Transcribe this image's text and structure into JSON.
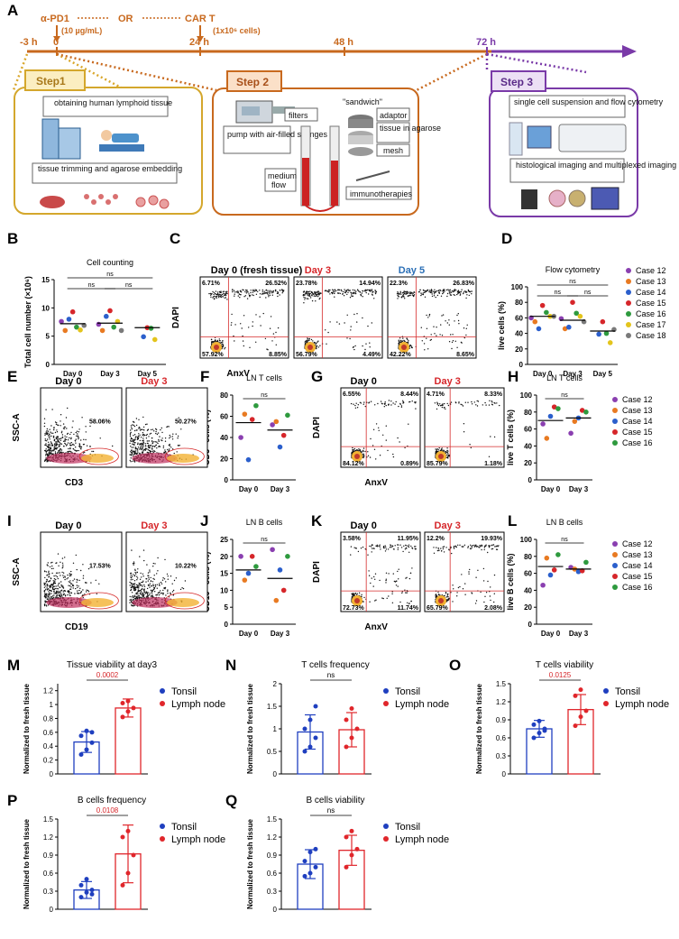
{
  "panel_labels": {
    "A": "A",
    "B": "B",
    "C": "C",
    "D": "D",
    "E": "E",
    "F": "F",
    "G": "G",
    "H": "H",
    "I": "I",
    "J": "J",
    "K": "K",
    "L": "L",
    "M": "M",
    "N": "N",
    "O": "O",
    "P": "P",
    "Q": "Q"
  },
  "timeline": {
    "ticks": [
      "-3 h",
      "0",
      "24 h",
      "48 h",
      "72 h"
    ],
    "apd1": "α-PD1",
    "apd1_dose": "(10 µg/mL)",
    "or": "OR",
    "cart": "CAR T",
    "cart_dose": "(1x10⁶ cells)"
  },
  "step1": {
    "title": "Step1",
    "box1": "obtaining human lymphoid tissue",
    "box2": "tissue trimming and agarose embedding"
  },
  "step2": {
    "title": "Step 2",
    "pump": "pump with air-filled syringes",
    "filters": "filters",
    "sandwich": "\"sandwich\"",
    "adaptor": "adaptor",
    "tissue": "tissue in agarose",
    "mesh": "mesh",
    "medium": "medium",
    "flow": "flow",
    "immuno": "immunotherapies"
  },
  "step3": {
    "title": "Step 3",
    "box1": "single cell suspension and flow cytometry",
    "box2": "histological imaging and multiplexed imaging"
  },
  "legend": {
    "cases": [
      {
        "name": "Case 12",
        "color": "#8a3fb0"
      },
      {
        "name": "Case 13",
        "color": "#e87a22"
      },
      {
        "name": "Case 14",
        "color": "#2b5fcc"
      },
      {
        "name": "Case 15",
        "color": "#d6262a"
      },
      {
        "name": "Case 16",
        "color": "#2e9a3e"
      },
      {
        "name": "Case 17",
        "color": "#e3c41c"
      },
      {
        "name": "Case 18",
        "color": "#7a7a7a"
      }
    ],
    "tonsil": "Tonsil",
    "lymph": "Lymph node",
    "tonsil_color": "#1f3fbf",
    "lymph_color": "#e0262b"
  },
  "flow": {
    "C": {
      "titles": [
        "Day 0 (fresh tissue)",
        "Day 3",
        "Day 5"
      ],
      "title_colors": [
        "#000000",
        "#d6262a",
        "#2b6fb6"
      ],
      "xlab": "AnxV",
      "ylab": "DAPI",
      "quads": [
        [
          "6.71%",
          "26.52%",
          "57.92%",
          "8.85%"
        ],
        [
          "23.78%",
          "14.94%",
          "56.79%",
          "4.49%"
        ],
        [
          "22.3%",
          "26.83%",
          "42.22%",
          "8.65%"
        ]
      ]
    },
    "E": {
      "titles": [
        "Day 0",
        "Day 3"
      ],
      "title_colors": [
        "#000000",
        "#d6262a"
      ],
      "xlab": "CD3",
      "ylab": "SSC-A",
      "gates": [
        "58.06%",
        "50.27%"
      ]
    },
    "G": {
      "titles": [
        "Day 0",
        "Day 3"
      ],
      "title_colors": [
        "#000000",
        "#d6262a"
      ],
      "xlab": "AnxV",
      "ylab": "DAPI",
      "quads": [
        [
          "6.55%",
          "8.44%",
          "84.12%",
          "0.89%"
        ],
        [
          "4.71%",
          "8.33%",
          "85.79%",
          "1.18%"
        ]
      ]
    },
    "I": {
      "titles": [
        "Day 0",
        "Day 3"
      ],
      "title_colors": [
        "#000000",
        "#d6262a"
      ],
      "xlab": "CD19",
      "ylab": "SSC-A",
      "gates": [
        "17.53%",
        "10.22%"
      ]
    },
    "K": {
      "titles": [
        "Day 0",
        "Day 3"
      ],
      "title_colors": [
        "#000000",
        "#d6262a"
      ],
      "xlab": "AnxV",
      "ylab": "DAPI",
      "quads": [
        [
          "3.58%",
          "11.95%",
          "72.73%",
          "11.74%"
        ],
        [
          "12.2%",
          "19.93%",
          "65.79%",
          "2.08%"
        ]
      ]
    }
  },
  "chart_data": [
    {
      "id": "B",
      "type": "scatter",
      "title": "Cell counting",
      "ylabel": "Total cell number (×10⁶)",
      "categories": [
        "Day 0",
        "Day 3",
        "Day 5"
      ],
      "ylim": [
        0,
        15
      ],
      "yticks": [
        0,
        5,
        10,
        15
      ],
      "points": [
        [
          7.6,
          6.0,
          8.0,
          9.3,
          6.6,
          6.1,
          6.9
        ],
        [
          7.1,
          6.0,
          8.5,
          9.5,
          6.6,
          7.6,
          6.0
        ],
        [
          null,
          null,
          4.9,
          6.5,
          6.4,
          4.4,
          null
        ]
      ],
      "means": [
        7.2,
        7.3,
        6.5
      ],
      "sig": [
        [
          "ns",
          0,
          1
        ],
        [
          "ns",
          1,
          2
        ],
        [
          "ns",
          0,
          2
        ]
      ]
    },
    {
      "id": "D",
      "type": "scatter",
      "title": "Flow cytometry",
      "ylabel": "live cells (%)",
      "categories": [
        "Day 0",
        "Day 3",
        "Day 5"
      ],
      "ylim": [
        0,
        100
      ],
      "yticks": [
        0,
        20,
        40,
        60,
        80,
        100
      ],
      "points": [
        [
          60,
          55,
          46,
          76,
          67,
          62,
          62
        ],
        [
          59,
          46,
          48,
          80,
          66,
          62,
          55
        ],
        [
          null,
          null,
          39,
          55,
          40,
          28,
          45
        ]
      ],
      "means": [
        62,
        57,
        43
      ],
      "sig": [
        [
          "ns",
          0,
          1
        ],
        [
          "ns",
          1,
          2
        ],
        [
          "ns",
          0,
          2
        ]
      ]
    },
    {
      "id": "F",
      "type": "scatter",
      "title": "LN T cells",
      "ylabel": "CD3⁺ cells (%)",
      "categories": [
        "Day 0",
        "Day 3"
      ],
      "ylim": [
        0,
        80
      ],
      "yticks": [
        0,
        20,
        40,
        60,
        80
      ],
      "points": [
        [
          40,
          62,
          19,
          57,
          70
        ],
        [
          52,
          55,
          31,
          42,
          61
        ]
      ],
      "means": [
        54,
        47
      ],
      "sig": [
        [
          "ns",
          0,
          1
        ]
      ]
    },
    {
      "id": "H",
      "type": "scatter",
      "title": "LN T cells",
      "ylabel": "live T cells (%)",
      "categories": [
        "Day 0",
        "Day 3"
      ],
      "ylim": [
        0,
        100
      ],
      "yticks": [
        0,
        20,
        40,
        60,
        80,
        100
      ],
      "points": [
        [
          66,
          49,
          75,
          86,
          84
        ],
        [
          55,
          69,
          73,
          82,
          80
        ]
      ],
      "means": [
        70,
        73
      ],
      "sig": [
        [
          "ns",
          0,
          1
        ]
      ]
    },
    {
      "id": "J",
      "type": "scatter",
      "title": "LN B cells",
      "ylabel": "CD19⁺ cells (%)",
      "categories": [
        "Day 0",
        "Day 3"
      ],
      "ylim": [
        0,
        25
      ],
      "yticks": [
        0,
        5,
        10,
        15,
        20,
        25
      ],
      "points": [
        [
          20,
          13,
          15,
          20,
          17
        ],
        [
          22,
          7,
          16,
          10,
          20
        ]
      ],
      "means": [
        16,
        13.5
      ],
      "sig": [
        [
          "ns",
          0,
          1
        ]
      ]
    },
    {
      "id": "L",
      "type": "scatter",
      "title": "LN B cells",
      "ylabel": "live B cells (%)",
      "categories": [
        "Day 0",
        "Day 3"
      ],
      "ylim": [
        0,
        100
      ],
      "yticks": [
        0,
        20,
        40,
        60,
        80,
        100
      ],
      "points": [
        [
          46,
          78,
          58,
          64,
          82
        ],
        [
          67,
          65,
          62,
          63,
          73
        ]
      ],
      "means": [
        68,
        65
      ],
      "sig": [
        [
          "ns",
          0,
          1
        ]
      ]
    },
    {
      "id": "M",
      "type": "bar",
      "title": "Tissue viability at day3",
      "ylabel": "Normalized to fresh tissue",
      "categories": [
        "Tonsil",
        "Lymph node"
      ],
      "ylim": [
        0,
        1.3
      ],
      "yticks": [
        0,
        0.2,
        0.4,
        0.6,
        0.8,
        1.0,
        1.2
      ],
      "values": [
        0.46,
        0.95
      ],
      "err": [
        0.15,
        0.13
      ],
      "points": [
        [
          0.28,
          0.35,
          0.45,
          0.55,
          0.62,
          0.6
        ],
        [
          0.82,
          0.9,
          0.95,
          1.02,
          1.05
        ]
      ],
      "p": "0.0002"
    },
    {
      "id": "N",
      "type": "bar",
      "title": "T cells frequency",
      "ylabel": "Normalized to fresh tissue",
      "categories": [
        "Tonsil",
        "Lymph node"
      ],
      "ylim": [
        0,
        2.0
      ],
      "yticks": [
        0,
        0.5,
        1.0,
        1.5,
        2.0
      ],
      "values": [
        0.93,
        0.98
      ],
      "err": [
        0.38,
        0.38
      ],
      "points": [
        [
          0.5,
          0.6,
          0.8,
          1.0,
          1.2,
          1.5
        ],
        [
          0.6,
          0.8,
          1.0,
          1.2,
          1.45
        ]
      ],
      "p": "ns"
    },
    {
      "id": "O",
      "type": "bar",
      "title": "T cells viability",
      "ylabel": "Normalized to fresh tissue",
      "categories": [
        "Tonsil",
        "Lymph node"
      ],
      "ylim": [
        0,
        1.5
      ],
      "yticks": [
        0,
        0.3,
        0.6,
        0.9,
        1.2,
        1.5
      ],
      "values": [
        0.75,
        1.07
      ],
      "err": [
        0.14,
        0.25
      ],
      "points": [
        [
          0.6,
          0.68,
          0.75,
          0.82,
          0.88,
          0.72
        ],
        [
          0.8,
          0.95,
          1.05,
          1.3,
          1.4
        ]
      ],
      "p": "0.0125"
    },
    {
      "id": "P",
      "type": "bar",
      "title": "B cells frequency",
      "ylabel": "Normalized to fresh tissue",
      "categories": [
        "Tonsil",
        "Lymph node"
      ],
      "ylim": [
        0,
        1.5
      ],
      "yticks": [
        0,
        0.3,
        0.6,
        0.9,
        1.2,
        1.5
      ],
      "values": [
        0.32,
        0.92
      ],
      "err": [
        0.14,
        0.48
      ],
      "points": [
        [
          0.2,
          0.28,
          0.32,
          0.4,
          0.5,
          0.25
        ],
        [
          0.4,
          0.6,
          0.9,
          1.2,
          1.3
        ]
      ],
      "p": "0.0108"
    },
    {
      "id": "Q",
      "type": "bar",
      "title": "B cells viability",
      "ylabel": "Normalized to fresh tissue",
      "categories": [
        "Tonsil",
        "Lymph node"
      ],
      "ylim": [
        0,
        1.5
      ],
      "yticks": [
        0,
        0.3,
        0.6,
        0.9,
        1.2,
        1.5
      ],
      "values": [
        0.75,
        0.98
      ],
      "err": [
        0.24,
        0.25
      ],
      "points": [
        [
          0.55,
          0.6,
          0.7,
          0.8,
          0.95,
          1.0
        ],
        [
          0.7,
          0.9,
          1.0,
          1.2,
          1.3
        ]
      ],
      "p": "ns"
    }
  ]
}
